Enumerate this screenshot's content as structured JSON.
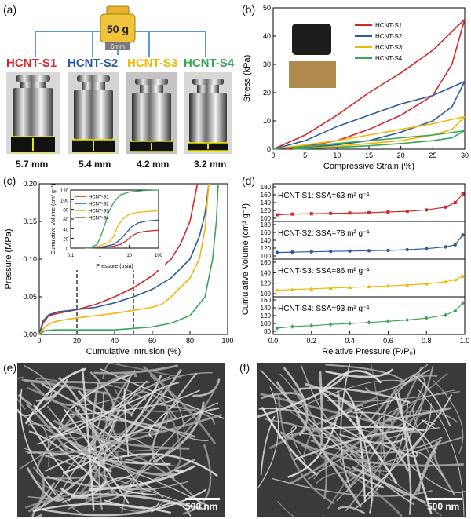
{
  "panels": {
    "a": "(a)",
    "b": "(b)",
    "c": "(c)",
    "d": "(d)",
    "e": "(e)",
    "f": "(f)"
  },
  "weight": {
    "mass": "50 g",
    "diameter": "6mm"
  },
  "samples": [
    {
      "name": "HCNT-S1",
      "thickness": "5.7 mm",
      "color": "#d62728"
    },
    {
      "name": "HCNT-S2",
      "thickness": "5.4 mm",
      "color": "#2b5c9e"
    },
    {
      "name": "HCNT-S3",
      "thickness": "4.2 mm",
      "color": "#f2b705"
    },
    {
      "name": "HCNT-S4",
      "thickness": "3.2 mm",
      "color": "#3aa655"
    }
  ],
  "panel_e_scale": "500 nm",
  "panel_f_scale": "500 nm",
  "chart_data": [
    {
      "id": "b",
      "type": "line",
      "xlabel": "Compressive Strain (%)",
      "ylabel": "Stress (kPa)",
      "xlim": [
        0,
        30
      ],
      "ylim": [
        0,
        50
      ],
      "xticks": [
        "0",
        "5",
        "10",
        "15",
        "20",
        "25",
        "30"
      ],
      "yticks": [
        "0",
        "10",
        "20",
        "30",
        "40",
        "50"
      ],
      "legend": "top-right",
      "series": [
        {
          "name": "HCNT-S1",
          "color": "#d62728",
          "loading": [
            [
              0,
              0
            ],
            [
              5,
              5
            ],
            [
              10,
              12
            ],
            [
              15,
              20
            ],
            [
              20,
              27
            ],
            [
              25,
              35
            ],
            [
              30,
              46
            ]
          ],
          "unloading": [
            [
              30,
              46
            ],
            [
              28,
              30
            ],
            [
              25,
              19
            ],
            [
              20,
              12
            ],
            [
              15,
              7
            ],
            [
              10,
              3
            ],
            [
              5,
              1
            ],
            [
              2,
              0
            ]
          ]
        },
        {
          "name": "HCNT-S2",
          "color": "#2b5c9e",
          "loading": [
            [
              0,
              0
            ],
            [
              5,
              3
            ],
            [
              10,
              8
            ],
            [
              15,
              12
            ],
            [
              20,
              16
            ],
            [
              25,
              19
            ],
            [
              30,
              24
            ]
          ],
          "unloading": [
            [
              30,
              24
            ],
            [
              28,
              15
            ],
            [
              25,
              10
            ],
            [
              20,
              6
            ],
            [
              15,
              3
            ],
            [
              10,
              1.5
            ],
            [
              5,
              0.5
            ],
            [
              3,
              0
            ]
          ]
        },
        {
          "name": "HCNT-S3",
          "color": "#f2b705",
          "loading": [
            [
              0,
              0
            ],
            [
              5,
              1.5
            ],
            [
              10,
              3
            ],
            [
              15,
              5
            ],
            [
              20,
              7
            ],
            [
              25,
              9
            ],
            [
              30,
              11.5
            ]
          ],
          "unloading": [
            [
              30,
              11.5
            ],
            [
              28,
              7
            ],
            [
              25,
              5
            ],
            [
              20,
              3
            ],
            [
              15,
              2
            ],
            [
              10,
              1
            ],
            [
              5,
              0.3
            ],
            [
              3,
              0
            ]
          ]
        },
        {
          "name": "HCNT-S4",
          "color": "#3aa655",
          "loading": [
            [
              0,
              0
            ],
            [
              5,
              1
            ],
            [
              10,
              2
            ],
            [
              15,
              3
            ],
            [
              20,
              4
            ],
            [
              25,
              5
            ],
            [
              30,
              6.5
            ]
          ],
          "unloading": [
            [
              30,
              6.5
            ],
            [
              28,
              4
            ],
            [
              25,
              3
            ],
            [
              20,
              2
            ],
            [
              15,
              1.2
            ],
            [
              10,
              0.6
            ],
            [
              5,
              0.2
            ],
            [
              3,
              0
            ]
          ]
        }
      ]
    },
    {
      "id": "c",
      "type": "line",
      "xlabel": "Cumulative Intrusion (%)",
      "ylabel": "Pressure (MPa)",
      "xlim": [
        0,
        100
      ],
      "ylim": [
        0,
        0.2
      ],
      "xticks": [
        "0",
        "20",
        "40",
        "60",
        "80",
        "100"
      ],
      "yticks": [
        "0.00",
        "0.05",
        "0.10",
        "0.15",
        "0.20"
      ],
      "dashed_x": [
        20,
        50
      ],
      "series": [
        {
          "name": "HCNT-S1",
          "color": "#d62728",
          "points": [
            [
              0,
              0
            ],
            [
              2,
              0.015
            ],
            [
              5,
              0.025
            ],
            [
              10,
              0.028
            ],
            [
              20,
              0.033
            ],
            [
              30,
              0.04
            ],
            [
              40,
              0.05
            ],
            [
              50,
              0.062
            ],
            [
              60,
              0.078
            ],
            [
              70,
              0.1
            ],
            [
              75,
              0.12
            ],
            [
              80,
              0.15
            ],
            [
              84,
              0.2
            ]
          ]
        },
        {
          "name": "HCNT-S2",
          "color": "#2b5c9e",
          "points": [
            [
              0,
              0
            ],
            [
              2,
              0.018
            ],
            [
              5,
              0.026
            ],
            [
              10,
              0.03
            ],
            [
              20,
              0.033
            ],
            [
              30,
              0.036
            ],
            [
              40,
              0.042
            ],
            [
              50,
              0.05
            ],
            [
              60,
              0.06
            ],
            [
              70,
              0.075
            ],
            [
              80,
              0.1
            ],
            [
              85,
              0.13
            ],
            [
              88,
              0.16
            ],
            [
              90,
              0.2
            ]
          ]
        },
        {
          "name": "HCNT-S3",
          "color": "#f2b705",
          "points": [
            [
              0,
              0
            ],
            [
              3,
              0.01
            ],
            [
              6,
              0.015
            ],
            [
              10,
              0.018
            ],
            [
              20,
              0.022
            ],
            [
              30,
              0.025
            ],
            [
              40,
              0.028
            ],
            [
              50,
              0.032
            ],
            [
              60,
              0.036
            ],
            [
              65,
              0.04
            ],
            [
              70,
              0.05
            ],
            [
              80,
              0.075
            ],
            [
              85,
              0.1
            ],
            [
              88,
              0.14
            ],
            [
              90,
              0.2
            ]
          ]
        },
        {
          "name": "HCNT-S4",
          "color": "#3aa655",
          "points": [
            [
              0,
              0
            ],
            [
              3,
              0.005
            ],
            [
              8,
              0.006
            ],
            [
              20,
              0.006
            ],
            [
              40,
              0.006
            ],
            [
              60,
              0.01
            ],
            [
              70,
              0.015
            ],
            [
              80,
              0.025
            ],
            [
              88,
              0.05
            ],
            [
              92,
              0.1
            ],
            [
              94,
              0.15
            ],
            [
              95,
              0.2
            ]
          ]
        }
      ],
      "inset": {
        "xlabel": "Pressure (psia)",
        "ylabel": "Cumulative Volume (cm³ g⁻¹)",
        "xscale": "log",
        "xlim": [
          0.1,
          100
        ],
        "ylim": [
          0,
          120
        ],
        "xticks": [
          "0.1",
          "1",
          "10",
          "100"
        ],
        "yticks": [
          "0",
          "20",
          "40",
          "60",
          "80",
          "100",
          "120"
        ],
        "legend": "top-left",
        "series": [
          {
            "name": "HCNT-S1",
            "color": "#d62728",
            "points": [
              [
                0.3,
                0
              ],
              [
                1,
                1
              ],
              [
                3,
                4
              ],
              [
                5,
                8
              ],
              [
                8,
                15
              ],
              [
                12,
                25
              ],
              [
                20,
                32
              ],
              [
                40,
                35
              ],
              [
                100,
                37
              ]
            ]
          },
          {
            "name": "HCNT-S2",
            "color": "#2b5c9e",
            "points": [
              [
                0.3,
                0
              ],
              [
                1,
                1.5
              ],
              [
                3,
                8
              ],
              [
                5,
                18
              ],
              [
                8,
                32
              ],
              [
                12,
                44
              ],
              [
                20,
                52
              ],
              [
                40,
                56
              ],
              [
                100,
                58
              ]
            ]
          },
          {
            "name": "HCNT-S3",
            "color": "#f2b705",
            "points": [
              [
                0.3,
                0
              ],
              [
                1,
                4
              ],
              [
                2,
                12
              ],
              [
                3,
                25
              ],
              [
                4,
                45
              ],
              [
                6,
                60
              ],
              [
                10,
                70
              ],
              [
                20,
                74
              ],
              [
                50,
                76
              ],
              [
                100,
                77
              ]
            ]
          },
          {
            "name": "HCNT-S4",
            "color": "#3aa655",
            "points": [
              [
                0.3,
                0
              ],
              [
                0.5,
                2
              ],
              [
                0.8,
                8
              ],
              [
                1,
                20
              ],
              [
                1.5,
                50
              ],
              [
                2,
                75
              ],
              [
                3,
                95
              ],
              [
                5,
                110
              ],
              [
                10,
                116
              ],
              [
                30,
                119
              ],
              [
                100,
                120
              ]
            ]
          }
        ]
      }
    },
    {
      "id": "d",
      "type": "scatter",
      "xlabel": "Relative Pressure (P/P₀)",
      "ylabel": "Cumulative Volume (cm³ g⁻¹)",
      "xlim": [
        0,
        1.0
      ],
      "xticks": [
        "0.0",
        "0.2",
        "0.4",
        "0.6",
        "0.8",
        "1.0"
      ],
      "subplots": [
        {
          "name": "HCNT-S1",
          "label": "HCNT-S1: SSA=63 m² g⁻¹",
          "color": "#d62728",
          "marker": "square",
          "yticks": [
            "100",
            "120",
            "140",
            "160",
            "180"
          ],
          "ylim": [
            90,
            180
          ],
          "points": [
            [
              0.02,
              100
            ],
            [
              0.1,
              102
            ],
            [
              0.2,
              103
            ],
            [
              0.3,
              104
            ],
            [
              0.4,
              105
            ],
            [
              0.5,
              106
            ],
            [
              0.6,
              108
            ],
            [
              0.7,
              110
            ],
            [
              0.8,
              114
            ],
            [
              0.9,
              122
            ],
            [
              0.95,
              135
            ],
            [
              0.99,
              160
            ]
          ]
        },
        {
          "name": "HCNT-S2",
          "label": "HCNT-S2: SSA=78 m² g⁻¹",
          "color": "#2b5c9e",
          "marker": "circle",
          "yticks": [
            "100",
            "120",
            "140",
            "160",
            "180"
          ],
          "ylim": [
            90,
            180
          ],
          "points": [
            [
              0.02,
              100
            ],
            [
              0.1,
              101
            ],
            [
              0.2,
              102
            ],
            [
              0.3,
              103
            ],
            [
              0.4,
              104
            ],
            [
              0.5,
              105
            ],
            [
              0.6,
              106
            ],
            [
              0.7,
              108
            ],
            [
              0.8,
              111
            ],
            [
              0.9,
              116
            ],
            [
              0.95,
              122
            ],
            [
              0.99,
              150
            ]
          ]
        },
        {
          "name": "HCNT-S3",
          "label": "HCNT-S3: SSA=86 m² g⁻¹",
          "color": "#f2b705",
          "marker": "triangle",
          "yticks": [
            "100",
            "120",
            "140",
            "160"
          ],
          "ylim": [
            90,
            180
          ],
          "points": [
            [
              0.02,
              100
            ],
            [
              0.1,
              102
            ],
            [
              0.2,
              104
            ],
            [
              0.3,
              106
            ],
            [
              0.4,
              108
            ],
            [
              0.5,
              110
            ],
            [
              0.6,
              112
            ],
            [
              0.7,
              115
            ],
            [
              0.8,
              118
            ],
            [
              0.9,
              124
            ],
            [
              0.95,
              130
            ],
            [
              0.99,
              140
            ]
          ]
        },
        {
          "name": "HCNT-S4",
          "label": "HCNT-S4: SSA=93 m² g⁻¹",
          "color": "#3aa655",
          "marker": "diamond",
          "yticks": [
            "80",
            "100",
            "120",
            "140",
            "160"
          ],
          "ylim": [
            70,
            170
          ],
          "points": [
            [
              0.02,
              80
            ],
            [
              0.1,
              85
            ],
            [
              0.2,
              88
            ],
            [
              0.3,
              92
            ],
            [
              0.4,
              95
            ],
            [
              0.5,
              98
            ],
            [
              0.6,
              102
            ],
            [
              0.7,
              106
            ],
            [
              0.8,
              112
            ],
            [
              0.9,
              122
            ],
            [
              0.95,
              135
            ],
            [
              0.99,
              160
            ]
          ]
        }
      ]
    }
  ]
}
